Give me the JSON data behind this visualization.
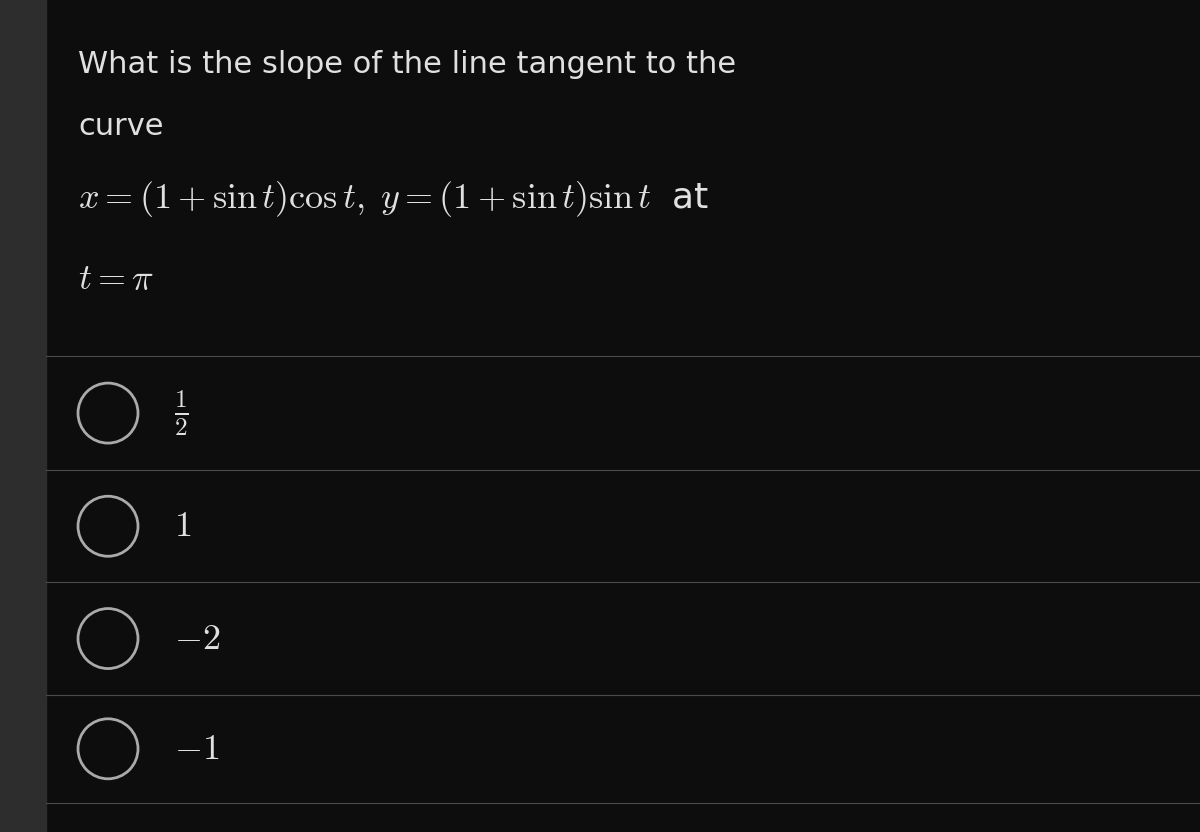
{
  "bg_color": "#0d0d0d",
  "panel_bg": "#1a1a1a",
  "left_bar_color": "#2d2d2d",
  "text_color": "#e0e0e0",
  "line_color": "#4a4a4a",
  "circle_color": "#aaaaaa",
  "question_line1": "What is the slope of the line tangent to the",
  "question_line2": "curve",
  "equation_line": "$x = (1 + \\sin t)\\cos t,\\; y = (1 + \\sin t)\\sin t\\;$ at",
  "condition_line": "$t = \\pi$",
  "choice_labels": [
    "$\\frac{1}{2}$",
    "$1$",
    "$-2$",
    "$-1$"
  ],
  "figsize": [
    12,
    8.32
  ],
  "dpi": 100,
  "text_fontsize": 22,
  "math_fontsize": 26,
  "choice_fontsize": 26
}
